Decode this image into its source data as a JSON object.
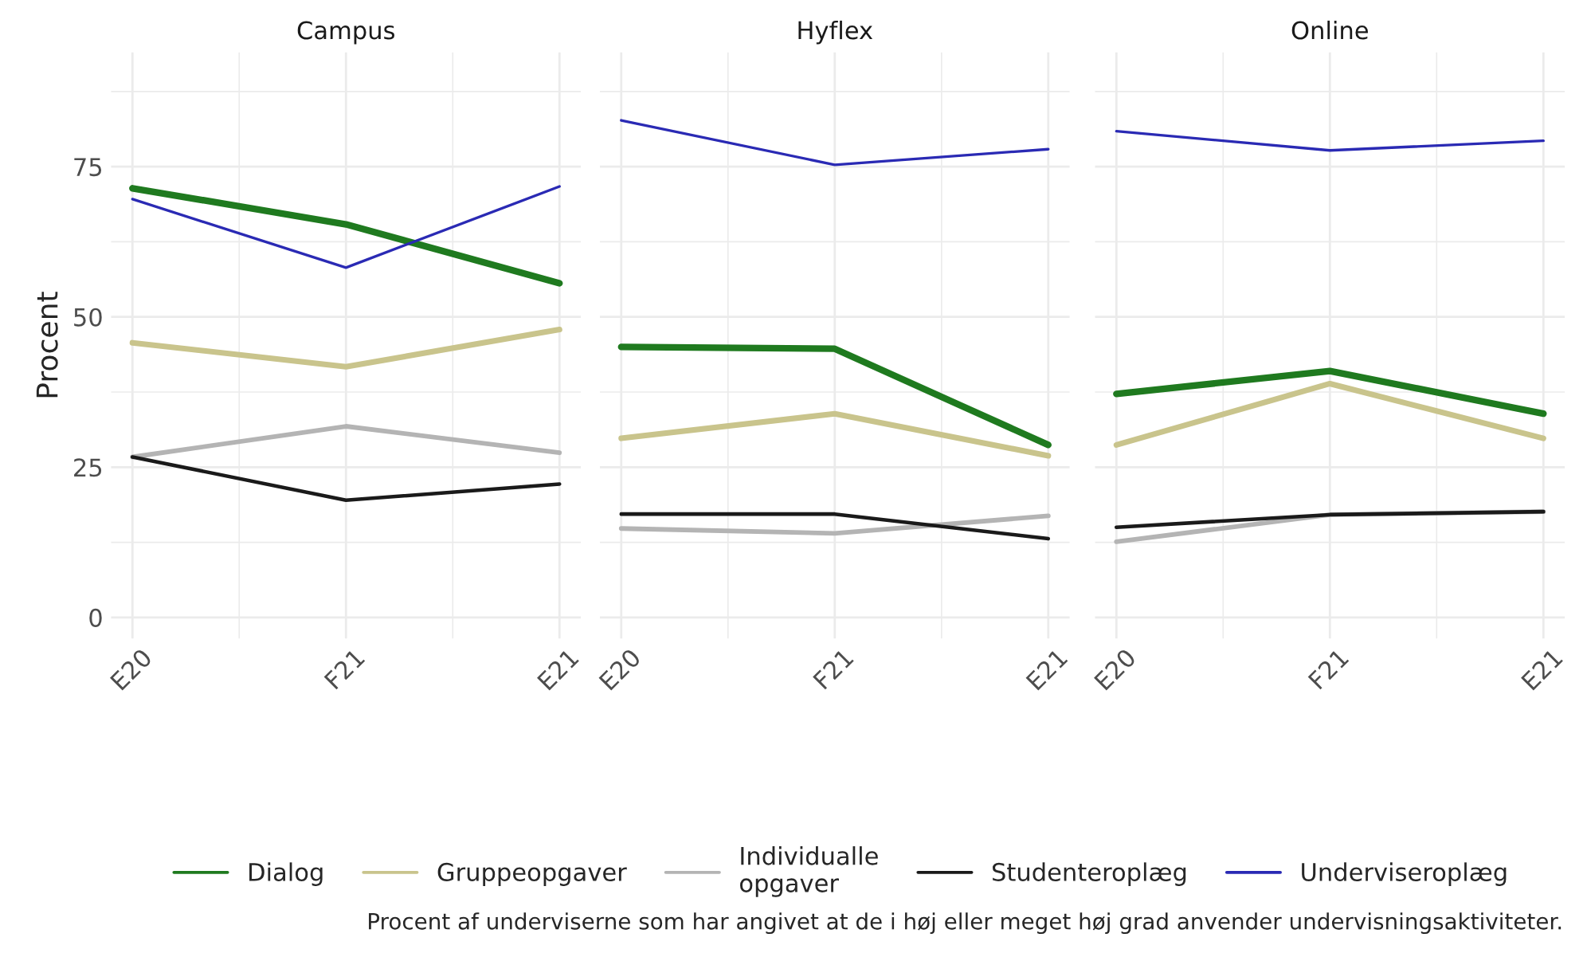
{
  "chart_data": [
    {
      "type": "line",
      "title": "Campus",
      "ylabel": "Procent",
      "categories": [
        "E20",
        "F21",
        "E21"
      ],
      "ylim": [
        -3.5,
        94
      ],
      "yticks": [
        0,
        25,
        50,
        75
      ],
      "grid": true,
      "legend": "bottom",
      "line_style": "solid",
      "series": [
        {
          "name": "Dialog",
          "color": "#1f7a1f",
          "values": [
            71.4,
            65.4,
            55.6
          ]
        },
        {
          "name": "Gruppeopgaver",
          "color": "#c9c48c",
          "values": [
            45.7,
            41.7,
            47.9
          ]
        },
        {
          "name": "Individualle\nopgaver",
          "color": "#b4b4b4",
          "values": [
            26.7,
            31.8,
            27.4
          ]
        },
        {
          "name": "Studenteroplæg",
          "color": "#1a1a1a",
          "values": [
            26.7,
            19.5,
            22.2
          ]
        },
        {
          "name": "Underviseroplæg",
          "color": "#2a2ab4",
          "values": [
            69.6,
            58.2,
            71.7
          ]
        }
      ]
    },
    {
      "type": "line",
      "title": "Hyflex",
      "categories": [
        "E20",
        "F21",
        "E21"
      ],
      "ylim": [
        -3.5,
        94
      ],
      "yticks": [
        0,
        25,
        50,
        75
      ],
      "grid": true,
      "tick_labels": "x",
      "line_style": "solid",
      "series": [
        {
          "color": "#1f7a1f",
          "values": [
            45.0,
            44.7,
            28.7
          ]
        },
        {
          "color": "#c9c48c",
          "values": [
            29.8,
            33.9,
            26.9
          ]
        },
        {
          "color": "#b4b4b4",
          "values": [
            14.8,
            14.0,
            16.9
          ]
        },
        {
          "color": "#1a1a1a",
          "values": [
            17.2,
            17.2,
            13.1
          ]
        },
        {
          "color": "#2a2ab4",
          "values": [
            82.7,
            75.3,
            77.9
          ]
        }
      ]
    },
    {
      "type": "line",
      "title": "Online",
      "categories": [
        "E20",
        "F21",
        "E21"
      ],
      "ylim": [
        -3.5,
        94
      ],
      "yticks": [
        0,
        25,
        50,
        75
      ],
      "grid": true,
      "tick_labels": "x",
      "line_style": "solid",
      "annotations": [
        "Procent af underviserne som har angivet at de i høj eller meget høj grad anvender undervisningsaktiviteter."
      ],
      "series": [
        {
          "color": "#1f7a1f",
          "values": [
            37.2,
            41.0,
            33.9
          ]
        },
        {
          "color": "#c9c48c",
          "values": [
            28.7,
            38.9,
            29.8
          ]
        },
        {
          "color": "#b4b4b4",
          "values": [
            12.6,
            17.1,
            17.6
          ]
        },
        {
          "color": "#1a1a1a",
          "values": [
            15.0,
            17.1,
            17.6
          ]
        },
        {
          "color": "#2a2ab4",
          "values": [
            80.9,
            77.7,
            79.3
          ]
        }
      ]
    }
  ]
}
